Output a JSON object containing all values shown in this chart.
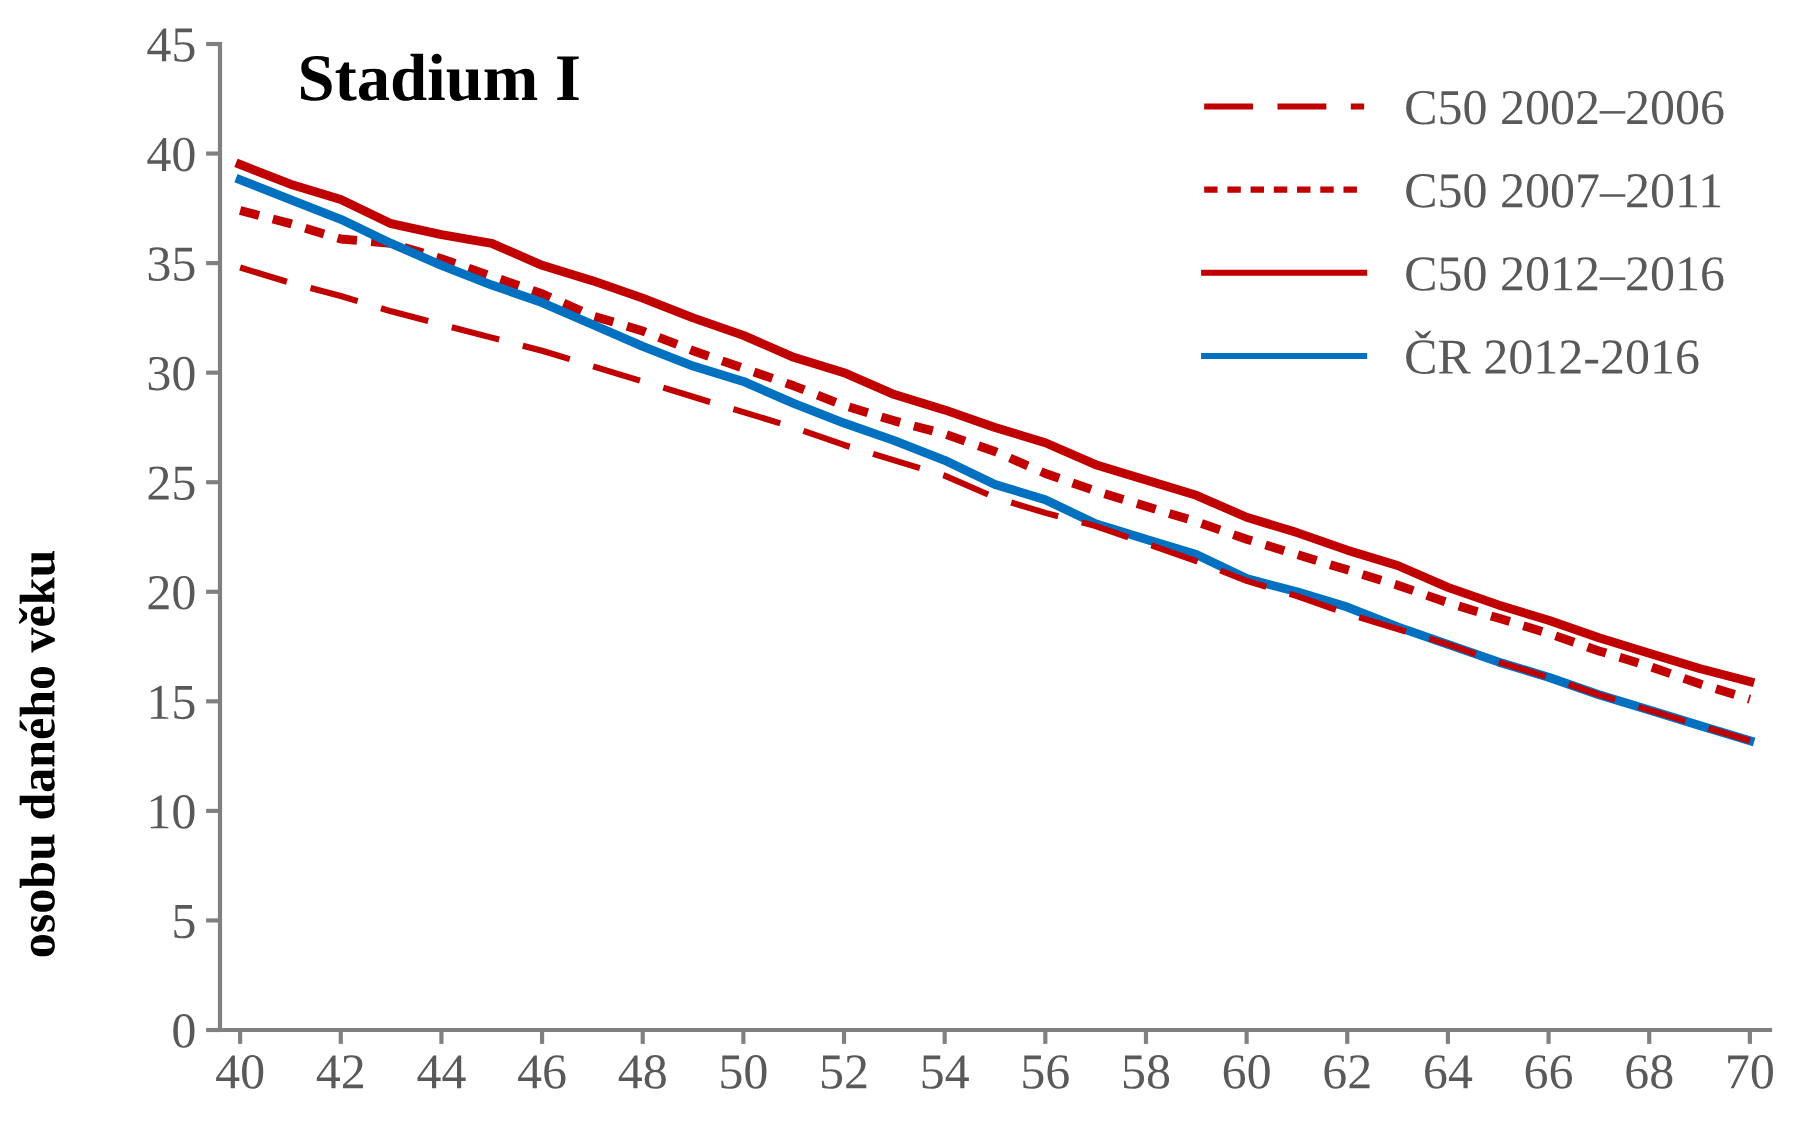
{
  "chart_data": {
    "type": "line",
    "title": "Stadium I",
    "ylabel": "osobu daného věku",
    "x": [
      40,
      41,
      42,
      43,
      44,
      45,
      46,
      47,
      48,
      49,
      50,
      51,
      52,
      53,
      54,
      55,
      56,
      57,
      58,
      59,
      60,
      61,
      62,
      63,
      64,
      65,
      66,
      67,
      68,
      69,
      70
    ],
    "series": [
      {
        "name": "C50 2002–2006",
        "color": "#c00000",
        "line_style": "dashed",
        "values": [
          34.8,
          34.1,
          33.5,
          32.8,
          32.2,
          31.6,
          31.0,
          30.3,
          29.6,
          28.9,
          28.2,
          27.5,
          26.7,
          26.0,
          25.3,
          24.3,
          23.6,
          23.0,
          22.2,
          21.4,
          20.5,
          19.8,
          19.0,
          18.3,
          17.6,
          16.8,
          16.1,
          15.3,
          14.6,
          13.9,
          13.2
        ]
      },
      {
        "name": "C50 2007–2011",
        "color": "#c00000",
        "line_style": "dotted",
        "values": [
          37.4,
          36.8,
          36.1,
          35.9,
          35.2,
          34.4,
          33.6,
          32.6,
          31.9,
          31.0,
          30.2,
          29.4,
          28.5,
          27.8,
          27.2,
          26.4,
          25.4,
          24.6,
          23.9,
          23.2,
          22.4,
          21.7,
          21.0,
          20.3,
          19.5,
          18.8,
          18.1,
          17.3,
          16.6,
          15.8,
          15.1
        ]
      },
      {
        "name": "C50 2012–2016",
        "color": "#c00000",
        "line_style": "solid",
        "values": [
          39.5,
          38.6,
          37.9,
          36.8,
          36.3,
          35.9,
          34.9,
          34.2,
          33.4,
          32.5,
          31.7,
          30.7,
          30.0,
          29.0,
          28.3,
          27.5,
          26.8,
          25.8,
          25.1,
          24.4,
          23.4,
          22.7,
          21.9,
          21.2,
          20.2,
          19.4,
          18.7,
          17.9,
          17.2,
          16.5,
          15.9
        ]
      },
      {
        "name": "ČR 2012-2016",
        "color": "#0070c0",
        "line_style": "solid",
        "values": [
          38.8,
          37.9,
          37.0,
          35.9,
          34.9,
          34.0,
          33.2,
          32.2,
          31.2,
          30.3,
          29.6,
          28.6,
          27.7,
          26.9,
          26.0,
          24.9,
          24.2,
          23.1,
          22.4,
          21.7,
          20.6,
          20.0,
          19.3,
          18.4,
          17.6,
          16.8,
          16.1,
          15.3,
          14.6,
          13.9,
          13.2
        ]
      }
    ],
    "xlim": [
      39.6,
      70.4
    ],
    "xticks": [
      40,
      42,
      44,
      46,
      48,
      50,
      52,
      54,
      56,
      58,
      60,
      62,
      64,
      66,
      68,
      70
    ],
    "ylim": [
      0,
      45
    ],
    "yticks": [
      0,
      5,
      10,
      15,
      20,
      25,
      30,
      35,
      40,
      45
    ],
    "grid": false,
    "legend": "top right",
    "marker": "none"
  }
}
